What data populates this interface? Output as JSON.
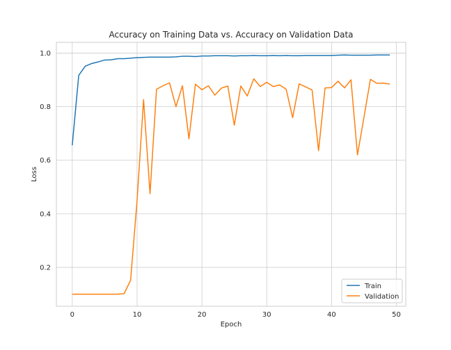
{
  "chart_data": {
    "type": "line",
    "title": "Accuracy on Training Data vs. Accuracy on Validation Data",
    "xlabel": "Epoch",
    "ylabel": "Loss",
    "xlim": [
      -2.45,
      51.45
    ],
    "ylim": [
      0.055,
      1.04
    ],
    "xticks": [
      0,
      10,
      20,
      30,
      40,
      50
    ],
    "yticks": [
      0.2,
      0.4,
      0.6,
      0.8,
      1.0
    ],
    "xtick_labels": [
      "0",
      "10",
      "20",
      "30",
      "40",
      "50"
    ],
    "ytick_labels": [
      "0.2",
      "0.4",
      "0.6",
      "0.8",
      "1.0"
    ],
    "grid": true,
    "legend_position": "lower-right",
    "x": [
      0,
      1,
      2,
      3,
      4,
      5,
      6,
      7,
      8,
      9,
      10,
      11,
      12,
      13,
      14,
      15,
      16,
      17,
      18,
      19,
      20,
      21,
      22,
      23,
      24,
      25,
      26,
      27,
      28,
      29,
      30,
      31,
      32,
      33,
      34,
      35,
      36,
      37,
      38,
      39,
      40,
      41,
      42,
      43,
      44,
      45,
      46,
      47,
      48,
      49
    ],
    "series": [
      {
        "name": "Train",
        "color": "#1f77b4",
        "values": [
          0.656,
          0.917,
          0.951,
          0.961,
          0.967,
          0.974,
          0.975,
          0.979,
          0.979,
          0.981,
          0.983,
          0.984,
          0.985,
          0.985,
          0.985,
          0.985,
          0.986,
          0.988,
          0.988,
          0.987,
          0.989,
          0.989,
          0.99,
          0.99,
          0.99,
          0.989,
          0.99,
          0.99,
          0.991,
          0.99,
          0.99,
          0.991,
          0.99,
          0.991,
          0.99,
          0.99,
          0.991,
          0.991,
          0.991,
          0.991,
          0.991,
          0.992,
          0.993,
          0.992,
          0.992,
          0.992,
          0.992,
          0.993,
          0.993,
          0.993
        ]
      },
      {
        "name": "Validation",
        "color": "#ff7f0e",
        "values": [
          0.1,
          0.1,
          0.1,
          0.1,
          0.1,
          0.1,
          0.1,
          0.1,
          0.102,
          0.152,
          0.45,
          0.826,
          0.475,
          0.865,
          0.878,
          0.889,
          0.8,
          0.878,
          0.68,
          0.884,
          0.863,
          0.878,
          0.843,
          0.869,
          0.877,
          0.731,
          0.877,
          0.84,
          0.904,
          0.875,
          0.891,
          0.875,
          0.881,
          0.865,
          0.759,
          0.885,
          0.874,
          0.862,
          0.636,
          0.87,
          0.871,
          0.895,
          0.87,
          0.9,
          0.62,
          0.76,
          0.902,
          0.887,
          0.888,
          0.884
        ]
      }
    ]
  }
}
